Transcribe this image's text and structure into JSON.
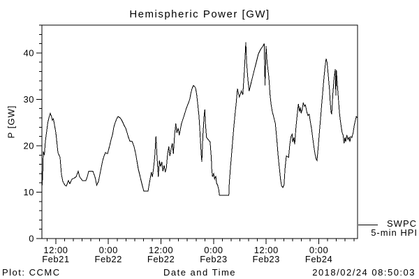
{
  "window": {
    "background": "#ffffff",
    "foreground": "#000000"
  },
  "chart": {
    "title": "Hemispheric Power [GW]",
    "ylabel": "P [GW]",
    "xlabel": "Date and Time",
    "footer_left": "Plot: CCMC",
    "footer_right": "2018/02/24 08:50:03",
    "legend": {
      "line1": "SWPC",
      "line2": "5-min HPI"
    }
  },
  "chart_data": {
    "type": "line",
    "title": "Hemispheric Power [GW]",
    "xlabel": "Date and Time",
    "ylabel": "P [GW]",
    "line_color": "#000000",
    "grid": false,
    "x_unit_hours_span": 72,
    "x_range": [
      0,
      72
    ],
    "y_range": [
      0,
      46
    ],
    "y_major_ticks": [
      0,
      10,
      20,
      30,
      40
    ],
    "y_minor_step": 2,
    "x_minor_first": 1.17,
    "x_minor_step": 2,
    "x_major_ticks": [
      {
        "t": 3.17,
        "time": "12:00",
        "date": "Feb21"
      },
      {
        "t": 15.17,
        "time": "0:00",
        "date": "Feb22"
      },
      {
        "t": 27.17,
        "time": "12:00",
        "date": "Feb22"
      },
      {
        "t": 39.17,
        "time": "0:00",
        "date": "Feb23"
      },
      {
        "t": 51.17,
        "time": "12:00",
        "date": "Feb23"
      },
      {
        "t": 63.17,
        "time": "0:00",
        "date": "Feb24"
      }
    ],
    "legend_position": "right-outside",
    "series_name": "SWPC 5-min HPI",
    "points": [
      [
        0,
        11
      ],
      [
        0.16,
        13
      ],
      [
        0.32,
        18.8
      ],
      [
        0.56,
        18
      ],
      [
        0.8,
        21
      ],
      [
        1.11,
        23.3
      ],
      [
        1.35,
        25
      ],
      [
        1.59,
        26
      ],
      [
        1.91,
        27
      ],
      [
        2.23,
        26.2
      ],
      [
        2.39,
        25.5
      ],
      [
        2.63,
        25.8
      ],
      [
        2.87,
        24.5
      ],
      [
        3.19,
        22.8
      ],
      [
        3.66,
        18.5
      ],
      [
        4.14,
        17.5
      ],
      [
        4.46,
        13.8
      ],
      [
        4.78,
        12.3
      ],
      [
        5.26,
        11.5
      ],
      [
        5.57,
        11.3
      ],
      [
        6.05,
        12.5
      ],
      [
        6.37,
        11.8
      ],
      [
        6.85,
        12.8
      ],
      [
        7.33,
        13
      ],
      [
        7.8,
        13.3
      ],
      [
        8.28,
        14.5
      ],
      [
        8.6,
        13.3
      ],
      [
        9.24,
        12.5
      ],
      [
        10.03,
        12.5
      ],
      [
        10.35,
        13.3
      ],
      [
        10.67,
        14.5
      ],
      [
        11.63,
        14.5
      ],
      [
        12.1,
        13.3
      ],
      [
        12.5,
        11.5
      ],
      [
        12.9,
        12.3
      ],
      [
        13.22,
        13.8
      ],
      [
        13.54,
        15.3
      ],
      [
        13.86,
        16.8
      ],
      [
        14.18,
        17.8
      ],
      [
        14.49,
        18.5
      ],
      [
        14.97,
        18.3
      ],
      [
        15.45,
        20
      ],
      [
        15.77,
        21.3
      ],
      [
        16.09,
        22.3
      ],
      [
        16.41,
        24
      ],
      [
        16.72,
        25
      ],
      [
        17.04,
        25.8
      ],
      [
        17.36,
        26.3
      ],
      [
        17.84,
        26
      ],
      [
        18.16,
        25.6
      ],
      [
        18.48,
        25
      ],
      [
        18.8,
        24.3
      ],
      [
        19.11,
        23.8
      ],
      [
        19.43,
        22.8
      ],
      [
        19.75,
        21.8
      ],
      [
        20.07,
        21
      ],
      [
        20.55,
        21
      ],
      [
        21.02,
        19.8
      ],
      [
        21.34,
        18.5
      ],
      [
        21.66,
        16.8
      ],
      [
        21.98,
        15
      ],
      [
        22.3,
        13.8
      ],
      [
        22.62,
        12.5
      ],
      [
        22.94,
        11.3
      ],
      [
        23.26,
        10.2
      ],
      [
        24.21,
        10.2
      ],
      [
        24.53,
        12
      ],
      [
        24.96,
        14.3
      ],
      [
        25.22,
        13.3
      ],
      [
        25.49,
        15.3
      ],
      [
        25.76,
        17.8
      ],
      [
        26.01,
        22
      ],
      [
        26.28,
        17.3
      ],
      [
        26.55,
        13.3
      ],
      [
        26.81,
        16.8
      ],
      [
        27.08,
        15.5
      ],
      [
        27.35,
        16.5
      ],
      [
        27.61,
        14.5
      ],
      [
        27.88,
        15.8
      ],
      [
        28.15,
        14.3
      ],
      [
        28.4,
        15.3
      ],
      [
        28.67,
        18.3
      ],
      [
        28.94,
        19.8
      ],
      [
        29.2,
        17.8
      ],
      [
        29.47,
        19.3
      ],
      [
        29.74,
        20.5
      ],
      [
        29.99,
        18.3
      ],
      [
        30.26,
        22.3
      ],
      [
        30.53,
        24.8
      ],
      [
        30.79,
        22.8
      ],
      [
        31.06,
        23.8
      ],
      [
        31.33,
        22.3
      ],
      [
        31.85,
        24.8
      ],
      [
        32.38,
        26.3
      ],
      [
        32.92,
        28
      ],
      [
        33.45,
        29.3
      ],
      [
        33.72,
        30
      ],
      [
        33.97,
        31.3
      ],
      [
        34.24,
        32.3
      ],
      [
        34.56,
        33
      ],
      [
        35.04,
        32.5
      ],
      [
        35.31,
        31
      ],
      [
        35.57,
        28.8
      ],
      [
        35.84,
        26.3
      ],
      [
        36,
        23.8
      ],
      [
        36.2,
        20.3
      ],
      [
        36.36,
        17.8
      ],
      [
        36.47,
        16.5
      ],
      [
        36.74,
        22.3
      ],
      [
        37,
        26.5
      ],
      [
        37.16,
        27.8
      ],
      [
        37.31,
        24.8
      ],
      [
        37.54,
        21.8
      ],
      [
        38.38,
        20.8
      ],
      [
        38.65,
        17.3
      ],
      [
        38.75,
        14.8
      ],
      [
        38.91,
        13.3
      ],
      [
        39.18,
        14
      ],
      [
        39.39,
        12.8
      ],
      [
        39.66,
        13.5
      ],
      [
        39.82,
        12
      ],
      [
        40.09,
        11.5
      ],
      [
        40.35,
        10.5
      ],
      [
        40.51,
        9.3
      ],
      [
        42.64,
        9.3
      ],
      [
        42.74,
        11.8
      ],
      [
        43.01,
        15.3
      ],
      [
        43.28,
        18.3
      ],
      [
        43.53,
        21.3
      ],
      [
        43.8,
        24.3
      ],
      [
        44.07,
        27
      ],
      [
        44.33,
        29.3
      ],
      [
        44.6,
        32.3
      ],
      [
        45.03,
        30.5
      ],
      [
        45.51,
        31.8
      ],
      [
        45.83,
        31
      ],
      [
        46.19,
        36.3
      ],
      [
        46.51,
        42.3
      ],
      [
        46.72,
        37.5
      ],
      [
        46.99,
        34.3
      ],
      [
        47.26,
        31.8
      ],
      [
        47.79,
        33.8
      ],
      [
        48.31,
        35.8
      ],
      [
        48.85,
        37.8
      ],
      [
        49.38,
        39.8
      ],
      [
        49.91,
        40.8
      ],
      [
        50.45,
        41.5
      ],
      [
        50.7,
        42
      ],
      [
        50.89,
        33
      ],
      [
        51.13,
        41.5
      ],
      [
        51.37,
        38
      ],
      [
        51.77,
        34.8
      ],
      [
        52.04,
        31
      ],
      [
        52.29,
        28.8
      ],
      [
        52.56,
        27.3
      ],
      [
        52.93,
        26
      ],
      [
        53.25,
        24.8
      ],
      [
        53.63,
        20.8
      ],
      [
        53.89,
        17.8
      ],
      [
        54.16,
        15.3
      ],
      [
        54.43,
        12.8
      ],
      [
        54.68,
        11.3
      ],
      [
        54.95,
        11
      ],
      [
        55.22,
        11.5
      ],
      [
        55.48,
        15.3
      ],
      [
        55.75,
        17.8
      ],
      [
        56.28,
        17.5
      ],
      [
        56.55,
        20.3
      ],
      [
        56.82,
        22
      ],
      [
        57.07,
        22.5
      ],
      [
        57.23,
        20.8
      ],
      [
        57.45,
        21.8
      ],
      [
        57.66,
        20.3
      ],
      [
        57.98,
        24.3
      ],
      [
        58.3,
        27.3
      ],
      [
        58.51,
        29
      ],
      [
        58.78,
        27.3
      ],
      [
        58.94,
        28.3
      ],
      [
        59.14,
        27
      ],
      [
        59.37,
        27.8
      ],
      [
        59.62,
        29.3
      ],
      [
        59.89,
        28.5
      ],
      [
        60.1,
        28.8
      ],
      [
        60.42,
        27.3
      ],
      [
        60.69,
        26.5
      ],
      [
        60.96,
        26.8
      ],
      [
        61.21,
        25.3
      ],
      [
        61.48,
        23.8
      ],
      [
        61.75,
        21.8
      ],
      [
        62.01,
        20
      ],
      [
        62.28,
        18.3
      ],
      [
        62.6,
        17
      ],
      [
        62.76,
        16.8
      ],
      [
        63.08,
        20.3
      ],
      [
        63.28,
        22.8
      ],
      [
        63.55,
        25.8
      ],
      [
        63.82,
        28.8
      ],
      [
        64.08,
        31.8
      ],
      [
        64.35,
        34.8
      ],
      [
        64.62,
        37.3
      ],
      [
        64.83,
        38.8
      ],
      [
        65.04,
        38
      ],
      [
        65.31,
        35.3
      ],
      [
        65.58,
        32.3
      ],
      [
        65.74,
        29.8
      ],
      [
        65.95,
        27.3
      ],
      [
        66.11,
        26.8
      ],
      [
        66.38,
        31.3
      ],
      [
        66.63,
        34.3
      ],
      [
        66.9,
        36.5
      ],
      [
        67.06,
        30.8
      ],
      [
        67.17,
        36.3
      ],
      [
        67.43,
        32.8
      ],
      [
        67.7,
        29.3
      ],
      [
        67.86,
        27.3
      ],
      [
        68.06,
        25.5
      ],
      [
        68.29,
        24
      ],
      [
        68.49,
        22.8
      ],
      [
        68.7,
        22.3
      ],
      [
        68.92,
        20.5
      ],
      [
        69.13,
        21.8
      ],
      [
        69.29,
        20.8
      ],
      [
        69.56,
        22.3
      ],
      [
        69.81,
        21.3
      ],
      [
        70.08,
        21.8
      ],
      [
        70.24,
        20.8
      ],
      [
        70.45,
        22
      ],
      [
        70.72,
        21.8
      ],
      [
        70.99,
        22.8
      ],
      [
        71.24,
        24.3
      ],
      [
        71.51,
        25.5
      ],
      [
        71.72,
        26.3
      ],
      [
        72,
        26
      ]
    ]
  }
}
